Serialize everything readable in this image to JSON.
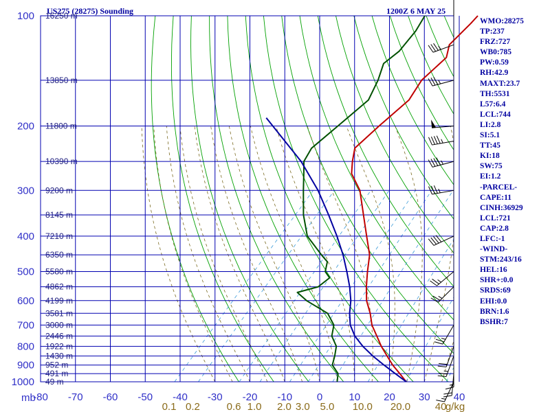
{
  "header": {
    "station_title": "US275 (28275) Sounding",
    "valid_time": "1200Z  6 MAY 25"
  },
  "indices": [
    "WMO:28275",
    "TP:237",
    "FRZ:727",
    "WB0:785",
    "PW:0.59",
    "RH:42.9",
    "MAXT:23.7",
    "TH:5531",
    "L57:6.4",
    "LCL:744",
    "LI:2.8",
    "SI:5.1",
    "TT:45",
    "KI:18",
    "SW:75",
    "EI:1.2",
    "-PARCEL-",
    "CAPE:11",
    "CINH:36929",
    "LCL:721",
    "CAP:2.8",
    "LFC:-1",
    "-WIND-",
    "STM:243/16",
    "HEL:16",
    "SHR+:0.0",
    "SRDS:69",
    "EHI:0.0",
    "BRN:1.6",
    "BSHR:7"
  ],
  "chart_data": {
    "type": "skew-t log-p sounding",
    "pressure_unit_label": "mb",
    "pressure_levels": [
      100,
      200,
      300,
      400,
      500,
      600,
      700,
      800,
      900,
      1000
    ],
    "temperature_ticks": [
      -80,
      -70,
      -60,
      -50,
      -40,
      -30,
      -20,
      -10,
      0,
      10,
      20,
      30,
      40
    ],
    "temperature_tick_labels": [
      "-80",
      "-70",
      "-60",
      "-50",
      "-40",
      "-30",
      "-20",
      "-10",
      "0",
      "10",
      "20",
      "30",
      "40"
    ],
    "mixing_ratio_labels": [
      "0.1",
      "0.2",
      "0.6",
      "1.0",
      "2.0",
      "3.0",
      "5.0",
      "10.0",
      "20.0",
      "40",
      "g/kg"
    ],
    "height_labels": [
      {
        "p": 100,
        "text": "16250 m"
      },
      {
        "p": 150,
        "text": "13850 m"
      },
      {
        "p": 200,
        "text": "11800 m"
      },
      {
        "p": 250,
        "text": "10390 m"
      },
      {
        "p": 300,
        "text": "9200 m"
      },
      {
        "p": 350,
        "text": "8145 m"
      },
      {
        "p": 400,
        "text": "7210 m"
      },
      {
        "p": 450,
        "text": "6350 m"
      },
      {
        "p": 500,
        "text": "5580 m"
      },
      {
        "p": 550,
        "text": "4862 m"
      },
      {
        "p": 600,
        "text": "4199 m"
      },
      {
        "p": 650,
        "text": "3581 m"
      },
      {
        "p": 700,
        "text": "3000 m"
      },
      {
        "p": 750,
        "text": "2446 m"
      },
      {
        "p": 800,
        "text": "1922 m"
      },
      {
        "p": 850,
        "text": "1430 m"
      },
      {
        "p": 900,
        "text": "952 m"
      },
      {
        "p": 950,
        "text": "491 m"
      },
      {
        "p": 1000,
        "text": "49 m"
      }
    ],
    "series": [
      {
        "key": "temperature",
        "color": "#c00000",
        "points": [
          [
            1000,
            24.8
          ],
          [
            950,
            20.8
          ],
          [
            900,
            16.5
          ],
          [
            850,
            12.5
          ],
          [
            800,
            8.3
          ],
          [
            750,
            4.3
          ],
          [
            700,
            0.0
          ],
          [
            650,
            -3.6
          ],
          [
            600,
            -8.0
          ],
          [
            550,
            -11.7
          ],
          [
            500,
            -15.4
          ],
          [
            450,
            -19.2
          ],
          [
            400,
            -25.0
          ],
          [
            350,
            -31.5
          ],
          [
            300,
            -39.0
          ],
          [
            270,
            -45.8
          ],
          [
            250,
            -48.8
          ],
          [
            230,
            -51.6
          ],
          [
            200,
            -50.5
          ],
          [
            170,
            -48.8
          ],
          [
            150,
            -50.4
          ],
          [
            130,
            -49.3
          ],
          [
            120,
            -51.8
          ],
          [
            105,
            -51.3
          ],
          [
            100,
            -51.3
          ]
        ]
      },
      {
        "key": "dewpoint",
        "color": "#005000",
        "points": [
          [
            1000,
            5.0
          ],
          [
            950,
            3.1
          ],
          [
            900,
            -0.8
          ],
          [
            850,
            -2.5
          ],
          [
            800,
            -4.6
          ],
          [
            750,
            -8.6
          ],
          [
            700,
            -10.9
          ],
          [
            650,
            -15.8
          ],
          [
            600,
            -25.2
          ],
          [
            570,
            -30.0
          ],
          [
            550,
            -25.5
          ],
          [
            520,
            -24.6
          ],
          [
            500,
            -27.5
          ],
          [
            470,
            -29.5
          ],
          [
            450,
            -33.0
          ],
          [
            400,
            -42.0
          ],
          [
            350,
            -48.7
          ],
          [
            300,
            -55.2
          ],
          [
            270,
            -59.5
          ],
          [
            250,
            -62.7
          ],
          [
            230,
            -64.0
          ],
          [
            200,
            -62.3
          ],
          [
            170,
            -60.4
          ],
          [
            150,
            -62.9
          ],
          [
            135,
            -65.7
          ],
          [
            125,
            -64.5
          ],
          [
            110,
            -65.1
          ],
          [
            100,
            -66.5
          ]
        ]
      },
      {
        "key": "parcel",
        "color": "#0000a0",
        "points": [
          [
            1000,
            24.8
          ],
          [
            950,
            19.5
          ],
          [
            900,
            14.0
          ],
          [
            850,
            8.4
          ],
          [
            800,
            3.0
          ],
          [
            750,
            -2.0
          ],
          [
            700,
            -6.2
          ],
          [
            650,
            -9.5
          ],
          [
            600,
            -12.5
          ],
          [
            550,
            -16.5
          ],
          [
            500,
            -21.3
          ],
          [
            450,
            -26.8
          ],
          [
            400,
            -33.5
          ],
          [
            350,
            -41.5
          ],
          [
            300,
            -51.0
          ],
          [
            250,
            -63.5
          ],
          [
            200,
            -81.0
          ],
          [
            190,
            -85.0
          ]
        ]
      }
    ],
    "wind_barbs": [
      {
        "p": 100,
        "dir": 360,
        "speed": 50
      },
      {
        "p": 120,
        "dir": 250,
        "speed": 35
      },
      {
        "p": 150,
        "dir": 255,
        "speed": 35
      },
      {
        "p": 200,
        "dir": 265,
        "speed": 50
      },
      {
        "p": 220,
        "dir": 260,
        "speed": 45
      },
      {
        "p": 250,
        "dir": 255,
        "speed": 45
      },
      {
        "p": 300,
        "dir": 260,
        "speed": 35
      },
      {
        "p": 400,
        "dir": 245,
        "speed": 40
      },
      {
        "p": 500,
        "dir": 230,
        "speed": 25
      },
      {
        "p": 550,
        "dir": 225,
        "speed": 25
      },
      {
        "p": 700,
        "dir": 210,
        "speed": 25
      },
      {
        "p": 800,
        "dir": 200,
        "speed": 20
      },
      {
        "p": 850,
        "dir": 200,
        "speed": 25
      },
      {
        "p": 900,
        "dir": 180,
        "speed": 15
      },
      {
        "p": 950,
        "dir": 185,
        "speed": 20
      },
      {
        "p": 1000,
        "dir": 205,
        "speed": 15
      }
    ],
    "colors": {
      "isobar": "#0000b0",
      "isotherm": "#0000b0",
      "dry_adiabat": "#00a000",
      "moist_adiabat": "#7a6a20",
      "mixing_ratio": "#3a9ad8",
      "title": "#0000a0",
      "axis_label": "#3030c8",
      "mixing_label": "#8a6b1a"
    }
  }
}
